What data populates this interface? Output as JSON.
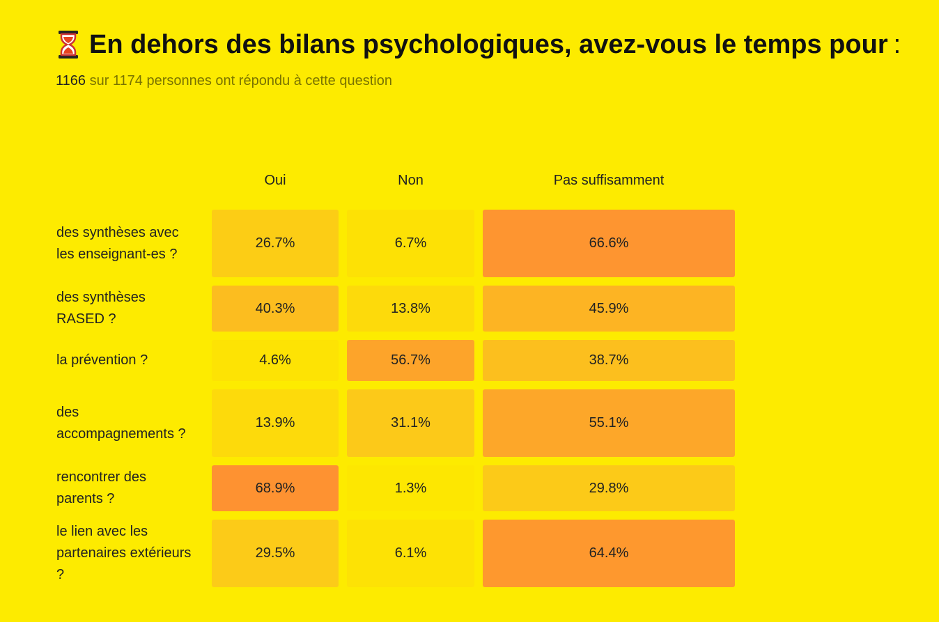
{
  "header": {
    "icon": "hourglass-icon",
    "title": "En dehors des bilans psychologiques, avez-vous le temps pour",
    "title_suffix": ":",
    "respondents": "1166",
    "respondents_text": " sur 1174 personnes ont répondu à cette question"
  },
  "colors": {
    "background": "#fdeb00",
    "scale_low": "#fde800",
    "scale_mid": "#fcc51c",
    "scale_high": "#fe9032"
  },
  "chart_data": {
    "type": "heatmap",
    "columns": [
      "Oui",
      "Non",
      "Pas suffisamment"
    ],
    "rows": [
      {
        "label": "des synthèses avec les enseignant-es ?",
        "values": [
          26.7,
          6.7,
          66.6
        ],
        "labels": [
          "26.7%",
          "6.7%",
          "66.6%"
        ]
      },
      {
        "label": "des synthèses RASED ?",
        "values": [
          40.3,
          13.8,
          45.9
        ],
        "labels": [
          "40.3%",
          "13.8%",
          "45.9%"
        ]
      },
      {
        "label": "la prévention ?",
        "values": [
          4.6,
          56.7,
          38.7
        ],
        "labels": [
          "4.6%",
          "56.7%",
          "38.7%"
        ]
      },
      {
        "label": "des accompagnements ?",
        "values": [
          13.9,
          31.1,
          55.1
        ],
        "labels": [
          "13.9%",
          "31.1%",
          "55.1%"
        ]
      },
      {
        "label": "rencontrer des parents ?",
        "values": [
          68.9,
          1.3,
          29.8
        ],
        "labels": [
          "68.9%",
          "1.3%",
          "29.8%"
        ]
      },
      {
        "label": "le lien avec les partenaires extérieurs ?",
        "values": [
          29.5,
          6.1,
          64.4
        ],
        "labels": [
          "29.5%",
          "6.1%",
          "64.4%"
        ]
      }
    ]
  }
}
